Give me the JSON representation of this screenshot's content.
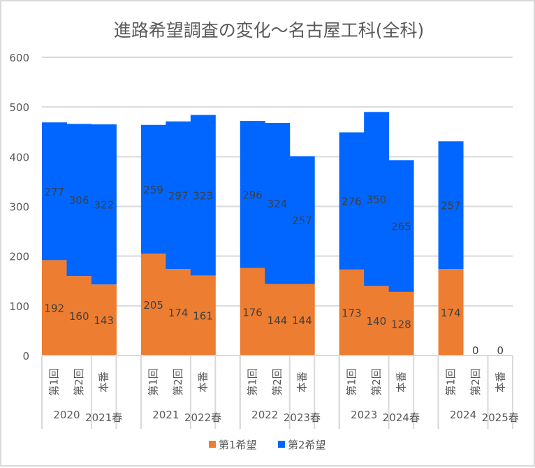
{
  "chart_data": {
    "type": "bar",
    "stacked": true,
    "title": "進路希望調査の変化～名古屋工科(全科)",
    "xlabel": "",
    "ylabel": "",
    "ylim": [
      0,
      600
    ],
    "yticks": [
      0,
      100,
      200,
      300,
      400,
      500,
      600
    ],
    "grid": true,
    "legend_position": "bottom",
    "colors": {
      "first": "#ED7D31",
      "second": "#0066FF"
    },
    "groups": [
      {
        "year_label": "2020",
        "spring_label": "2021春"
      },
      {
        "year_label": "2021",
        "spring_label": "2022春"
      },
      {
        "year_label": "2022",
        "spring_label": "2023春"
      },
      {
        "year_label": "2023",
        "spring_label": "2024春"
      },
      {
        "year_label": "2024",
        "spring_label": "2025春"
      }
    ],
    "categories": [
      {
        "group": 0,
        "label": "第1回"
      },
      {
        "group": 0,
        "label": "第2回"
      },
      {
        "group": 0,
        "label": "本番"
      },
      {
        "group": 1,
        "label": "第1回"
      },
      {
        "group": 1,
        "label": "第2回"
      },
      {
        "group": 1,
        "label": "本番"
      },
      {
        "group": 2,
        "label": "第1回"
      },
      {
        "group": 2,
        "label": "第2回"
      },
      {
        "group": 2,
        "label": "本番"
      },
      {
        "group": 3,
        "label": "第1回"
      },
      {
        "group": 3,
        "label": "第2回"
      },
      {
        "group": 3,
        "label": "本番"
      },
      {
        "group": 4,
        "label": "第1回"
      },
      {
        "group": 4,
        "label": "第2回"
      },
      {
        "group": 4,
        "label": "本番"
      }
    ],
    "series": [
      {
        "name": "第1希望",
        "values": [
          192,
          160,
          143,
          205,
          174,
          161,
          176,
          144,
          144,
          173,
          140,
          128,
          174,
          0,
          0
        ]
      },
      {
        "name": "第2希望",
        "values": [
          277,
          306,
          322,
          259,
          297,
          323,
          296,
          324,
          257,
          276,
          350,
          265,
          257,
          null,
          null
        ]
      }
    ]
  }
}
